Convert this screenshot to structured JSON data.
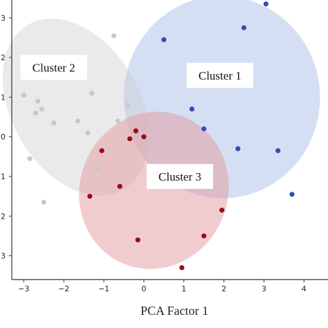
{
  "chart_data": {
    "type": "scatter",
    "xlabel": "PCA Factor 1",
    "ylabel": "",
    "xlim": [
      -3.3,
      4.6
    ],
    "ylim": [
      -3.6,
      3.45
    ],
    "xticks": [
      -3,
      -2,
      -1,
      0,
      1,
      2,
      3,
      4
    ],
    "yticks": [
      {
        "value": 3,
        "label": "3"
      },
      {
        "value": 2,
        "label": "2"
      },
      {
        "value": 1,
        "label": "1"
      },
      {
        "value": 0,
        "label": "0"
      },
      {
        "value": -1,
        "label": "1"
      },
      {
        "value": -2,
        "label": "2"
      },
      {
        "value": -3,
        "label": "3"
      }
    ],
    "grid": false,
    "series": [
      {
        "name": "Cluster 1",
        "color": "#2f4fb3",
        "ellipse": {
          "cx": 1.95,
          "cy": 1.0,
          "rx": 2.45,
          "ry": 2.55,
          "angle": 5,
          "fill": "#aabfe8",
          "opacity": 0.5
        },
        "label_pos": [
          1.9,
          1.55
        ],
        "points": [
          [
            3.05,
            3.35
          ],
          [
            2.5,
            2.75
          ],
          [
            0.5,
            2.45
          ],
          [
            1.2,
            0.7
          ],
          [
            1.5,
            0.2
          ],
          [
            2.35,
            -0.3
          ],
          [
            3.35,
            -0.35
          ],
          [
            3.7,
            -1.45
          ]
        ]
      },
      {
        "name": "Cluster 2",
        "color": "#c8c8c8",
        "ellipse": {
          "cx": -1.7,
          "cy": 0.75,
          "rx": 1.6,
          "ry": 2.4,
          "angle": 30,
          "fill": "#d0d0d0",
          "opacity": 0.45
        },
        "label_pos": [
          -2.25,
          1.75
        ],
        "points": [
          [
            -0.75,
            2.55
          ],
          [
            -3.0,
            1.05
          ],
          [
            -2.65,
            0.9
          ],
          [
            -2.55,
            0.7
          ],
          [
            -2.7,
            0.6
          ],
          [
            -1.3,
            1.1
          ],
          [
            -0.4,
            0.8
          ],
          [
            -1.65,
            0.4
          ],
          [
            -2.25,
            0.35
          ],
          [
            -0.65,
            0.4
          ],
          [
            -1.4,
            0.1
          ],
          [
            -2.85,
            -0.55
          ],
          [
            -1.15,
            -0.8
          ],
          [
            -2.5,
            -1.65
          ]
        ]
      },
      {
        "name": "Cluster 3",
        "color": "#9b0b16",
        "ellipse": {
          "cx": 0.25,
          "cy": -1.35,
          "rx": 1.85,
          "ry": 2.0,
          "angle": -22,
          "fill": "#e49a9f",
          "opacity": 0.5
        },
        "label_pos": [
          0.9,
          -1.0
        ],
        "points": [
          [
            -0.2,
            0.15
          ],
          [
            -0.35,
            -0.05
          ],
          [
            0.0,
            0.0
          ],
          [
            -1.05,
            -0.35
          ],
          [
            -0.6,
            -1.25
          ],
          [
            -1.35,
            -1.5
          ],
          [
            1.95,
            -1.85
          ],
          [
            1.5,
            -2.5
          ],
          [
            -0.15,
            -2.6
          ],
          [
            0.95,
            -3.3
          ]
        ]
      }
    ]
  }
}
